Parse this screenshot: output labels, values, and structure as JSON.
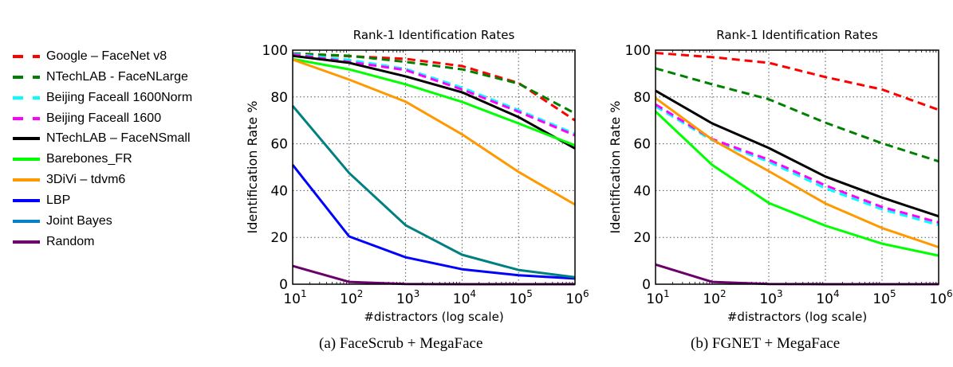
{
  "legend": [
    {
      "label": "Google – FaceNet v8",
      "color": "#ff0000",
      "dash": true
    },
    {
      "label": "NTechLAB - FaceNLarge",
      "color": "#008000",
      "dash": true
    },
    {
      "label": "Beijing Faceall 1600Norm",
      "color": "#00ffff",
      "dash": true
    },
    {
      "label": "Beijing Faceall 1600",
      "color": "#ff00ff",
      "dash": true
    },
    {
      "label": "NTechLAB – FaceNSmall",
      "color": "#000000",
      "dash": false
    },
    {
      "label": "Barebones_FR",
      "color": "#00ff00",
      "dash": false
    },
    {
      "label": "3DiVi – tdvm6",
      "color": "#ff9900",
      "dash": false
    },
    {
      "label": "LBP",
      "color": "#0000ff",
      "dash": false
    },
    {
      "label": "Joint Bayes",
      "color": "#0a80c8",
      "dash": false
    },
    {
      "label": "Random",
      "color": "#6b006b",
      "dash": false
    }
  ],
  "captions": {
    "a": "(a) FaceScrub + MegaFace",
    "b": "(b) FGNET + MegaFace"
  },
  "chart_data": [
    {
      "type": "line",
      "title": "Rank-1 Identification Rates",
      "xlabel": "#distractors (log scale)",
      "ylabel": "Identification Rate %",
      "xscale": "log",
      "x": [
        10,
        100,
        1000,
        10000,
        100000,
        1000000
      ],
      "xtick_labels": [
        [
          "10",
          "1"
        ],
        [
          "10",
          "2"
        ],
        [
          "10",
          "3"
        ],
        [
          "10",
          "4"
        ],
        [
          "10",
          "5"
        ],
        [
          "10",
          "6"
        ]
      ],
      "yticks": [
        0,
        20,
        40,
        60,
        80,
        100
      ],
      "ylim": [
        0,
        100
      ],
      "grid": true,
      "series": [
        {
          "name": "Google – FaceNet v8",
          "color": "#ff0000",
          "dash": true,
          "values": [
            98.6,
            97.4,
            96.3,
            93.2,
            86.0,
            70.0
          ]
        },
        {
          "name": "NTechLAB - FaceNLarge",
          "color": "#008000",
          "dash": true,
          "values": [
            98.6,
            97.6,
            95.0,
            91.8,
            85.7,
            73.0
          ]
        },
        {
          "name": "Beijing Faceall 1600Norm",
          "color": "#00ffff",
          "dash": true,
          "values": [
            98.4,
            95.8,
            92.0,
            84.0,
            74.4,
            64.3
          ]
        },
        {
          "name": "Beijing Faceall 1600",
          "color": "#ff00ff",
          "dash": true,
          "values": [
            98.2,
            95.0,
            91.5,
            83.2,
            73.7,
            63.6
          ]
        },
        {
          "name": "NTechLAB – FaceNSmall",
          "color": "#000000",
          "dash": false,
          "values": [
            97.6,
            94.6,
            88.8,
            82.0,
            71.4,
            58.0
          ]
        },
        {
          "name": "Barebones_FR",
          "color": "#00ff00",
          "dash": false,
          "values": [
            96.2,
            91.8,
            85.4,
            77.9,
            68.7,
            59.3
          ]
        },
        {
          "name": "3DiVi – tdvm6",
          "color": "#ff9900",
          "dash": false,
          "values": [
            96.0,
            87.4,
            78.0,
            64.0,
            48.0,
            34.0
          ]
        },
        {
          "name": "LBP",
          "color": "#0000ff",
          "dash": false,
          "values": [
            51.0,
            20.4,
            11.5,
            6.4,
            3.8,
            2.4
          ]
        },
        {
          "name": "Joint Bayes",
          "color": "#008080",
          "dash": false,
          "values": [
            76.2,
            47.5,
            25.2,
            12.6,
            6.1,
            3.0
          ]
        },
        {
          "name": "Random",
          "color": "#6b006b",
          "dash": false,
          "values": [
            7.8,
            1.0,
            0.1,
            0.01,
            0.001,
            0.0001
          ]
        }
      ]
    },
    {
      "type": "line",
      "title": "Rank-1 Identification Rates",
      "xlabel": "#distractors (log scale)",
      "ylabel": "Identification Rate %",
      "xscale": "log",
      "x": [
        10,
        100,
        1000,
        10000,
        100000,
        1000000
      ],
      "xtick_labels": [
        [
          "10",
          "1"
        ],
        [
          "10",
          "2"
        ],
        [
          "10",
          "3"
        ],
        [
          "10",
          "4"
        ],
        [
          "10",
          "5"
        ],
        [
          "10",
          "6"
        ]
      ],
      "yticks": [
        0,
        20,
        40,
        60,
        80,
        100
      ],
      "ylim": [
        0,
        100
      ],
      "grid": true,
      "series": [
        {
          "name": "Google – FaceNet v8",
          "color": "#ff0000",
          "dash": true,
          "values": [
            98.8,
            97.0,
            94.6,
            88.5,
            83.2,
            74.5
          ]
        },
        {
          "name": "NTechLAB - FaceNLarge",
          "color": "#008000",
          "dash": true,
          "values": [
            92.2,
            85.4,
            79.0,
            69.0,
            60.2,
            52.5
          ]
        },
        {
          "name": "Beijing Faceall 1600Norm",
          "color": "#00ffff",
          "dash": true,
          "values": [
            76.0,
            61.5,
            52.3,
            41.0,
            32.0,
            25.3
          ]
        },
        {
          "name": "Beijing Faceall 1600",
          "color": "#ff00ff",
          "dash": true,
          "values": [
            76.8,
            62.0,
            53.2,
            42.2,
            33.0,
            26.4
          ]
        },
        {
          "name": "NTechLAB – FaceNSmall",
          "color": "#000000",
          "dash": false,
          "values": [
            82.7,
            68.7,
            58.2,
            46.0,
            37.0,
            29.0
          ]
        },
        {
          "name": "Barebones_FR",
          "color": "#00ff00",
          "dash": false,
          "values": [
            73.8,
            51.0,
            34.7,
            25.0,
            17.3,
            12.2
          ]
        },
        {
          "name": "3DiVi – tdvm6",
          "color": "#ff9900",
          "dash": false,
          "values": [
            79.5,
            61.8,
            48.3,
            34.5,
            24.0,
            15.8
          ]
        },
        {
          "name": "Random",
          "color": "#6b006b",
          "dash": false,
          "values": [
            8.4,
            1.0,
            0.1,
            0.01,
            0.001,
            0.0001
          ]
        }
      ]
    }
  ]
}
